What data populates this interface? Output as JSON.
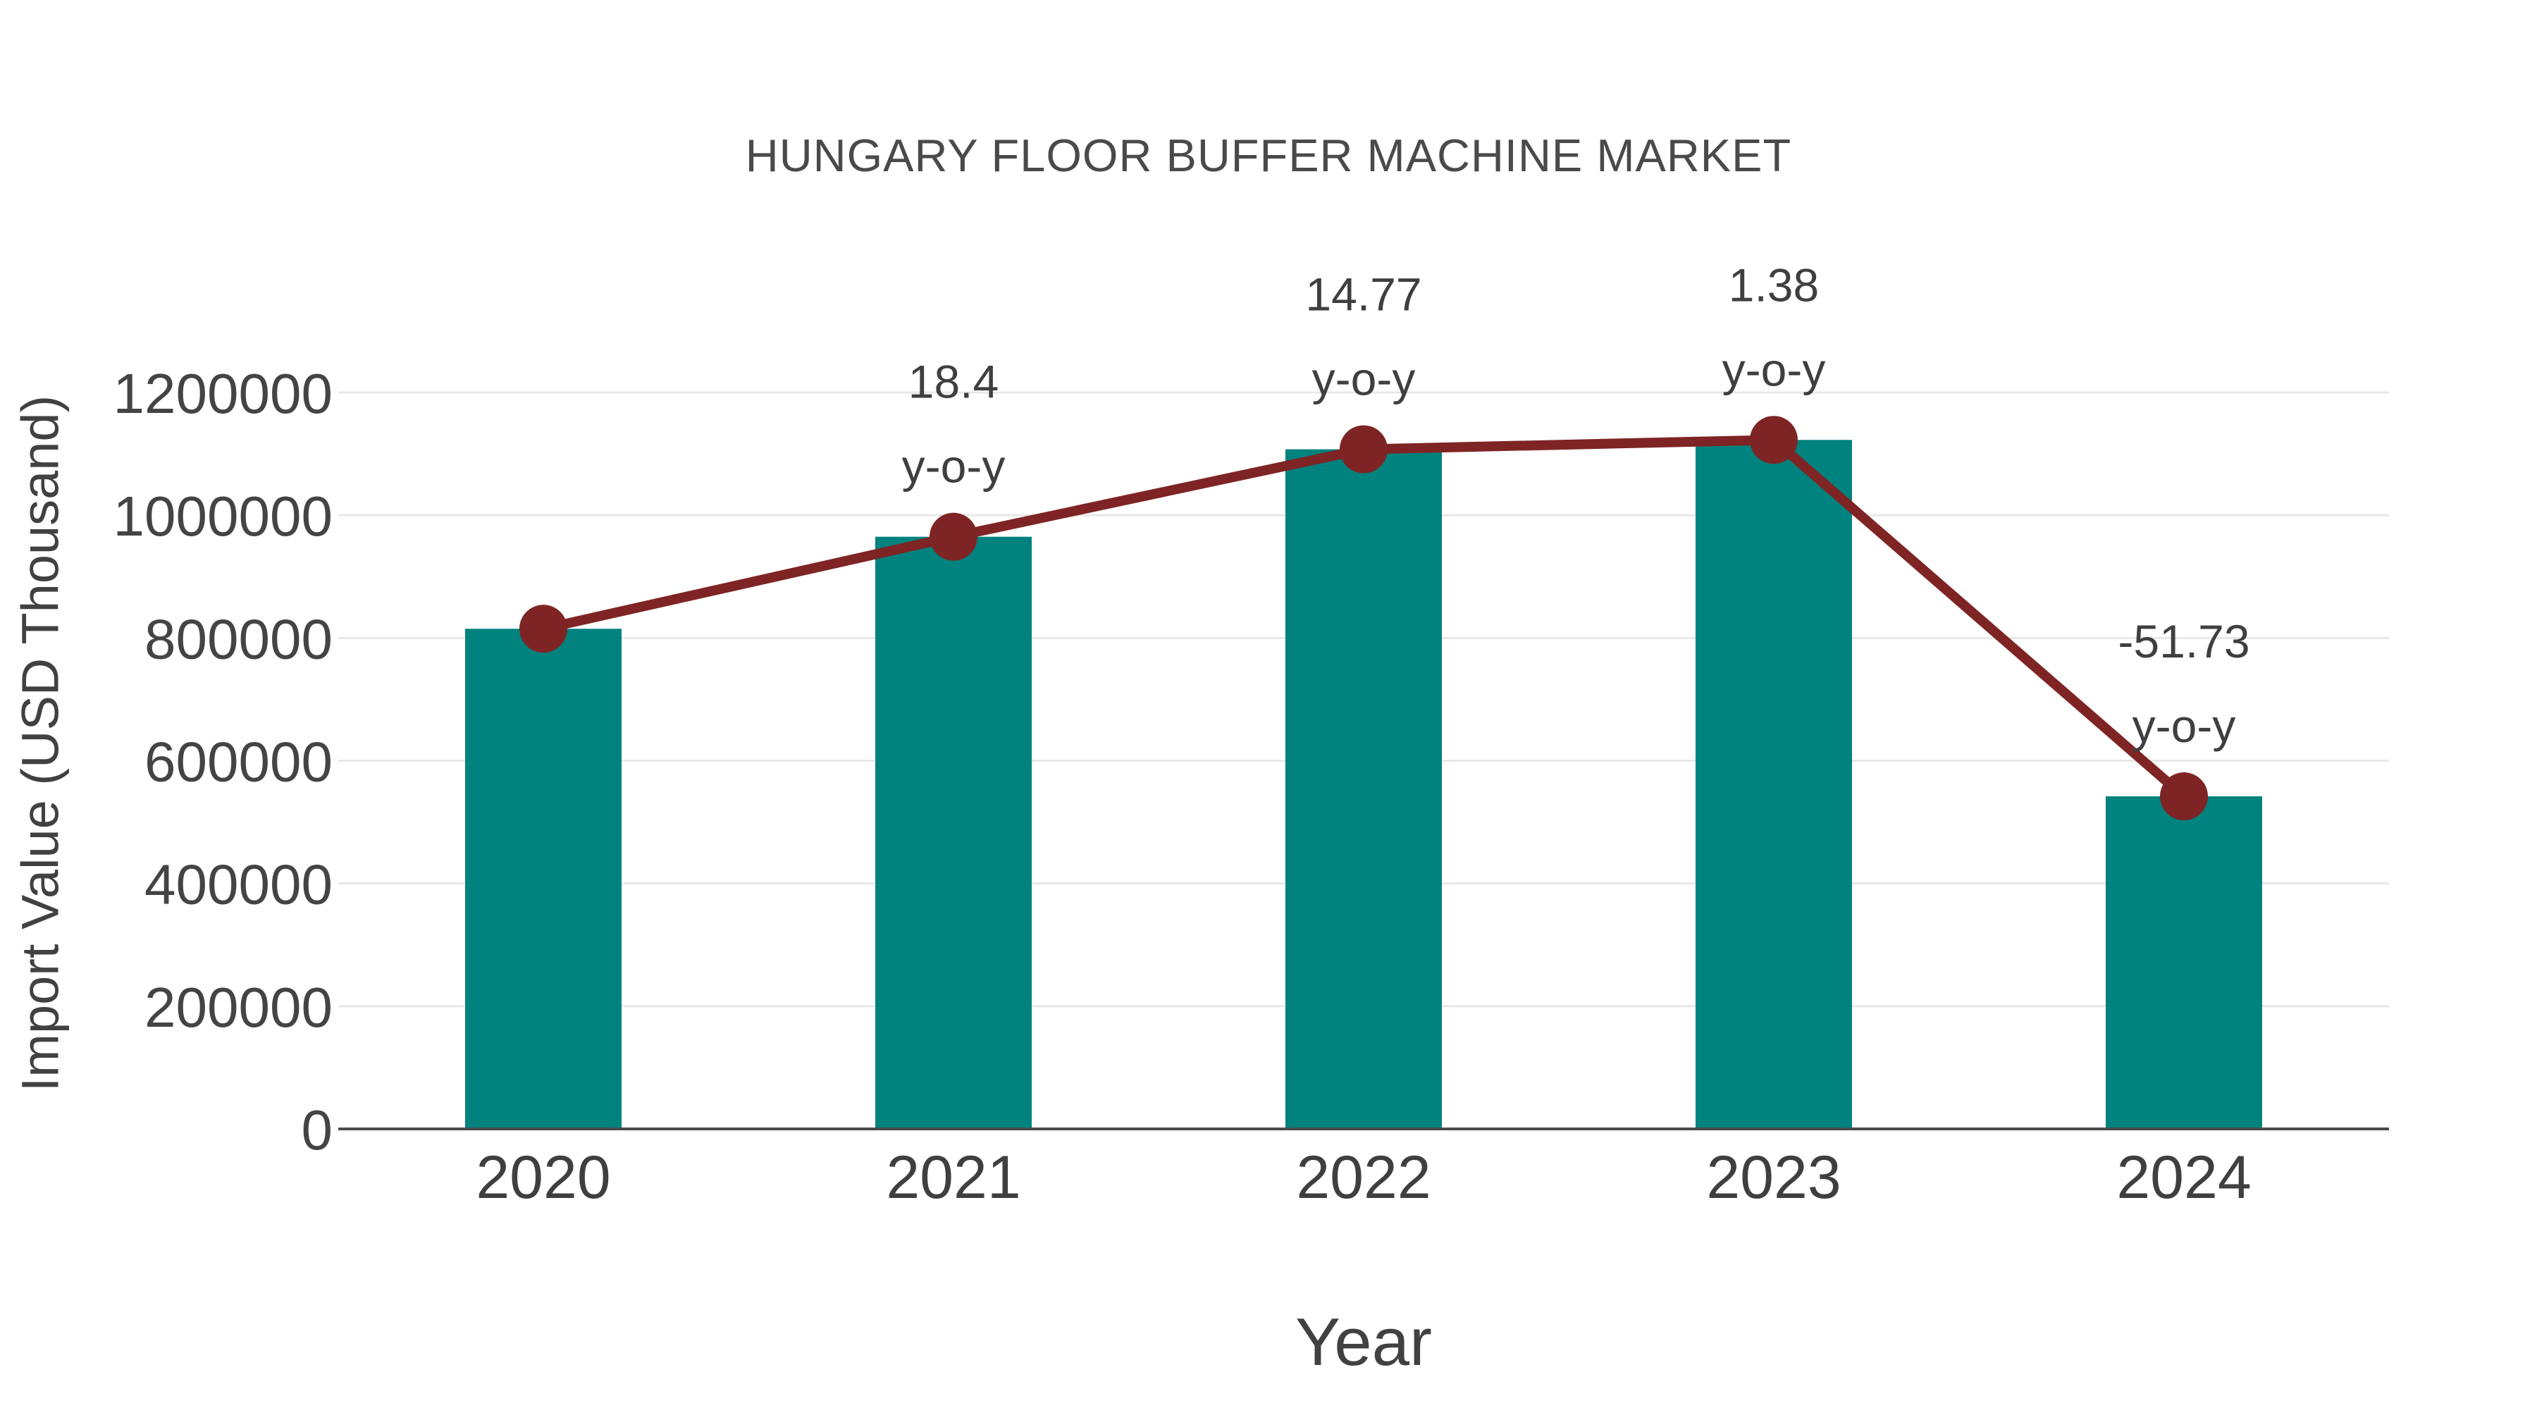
{
  "chart_data": {
    "type": "bar",
    "overlay": "line",
    "title": "HUNGARY FLOOR BUFFER MACHINE MARKET",
    "xlabel": "Year",
    "ylabel": "Import Value (USD Thousand)",
    "categories": [
      "2020",
      "2021",
      "2022",
      "2023",
      "2024"
    ],
    "values": [
      815000,
      964960,
      1107485,
      1122768,
      541960
    ],
    "line_values": [
      815000,
      964960,
      1107485,
      1122768,
      541960
    ],
    "yoy_values": [
      null,
      "18.4",
      "14.77",
      "1.38",
      "-51.73"
    ],
    "yoy_suffix": "y-o-y",
    "ylim": [
      0,
      1200000
    ],
    "yticks": [
      0,
      200000,
      400000,
      600000,
      800000,
      1000000,
      1200000
    ],
    "ytick_labels": [
      "0",
      "200000",
      "400000",
      "600000",
      "800000",
      "1000000",
      "1200000"
    ],
    "grid": "horizontal",
    "legend": "none",
    "colors": {
      "bar": "#00827E",
      "line": "#7F2424",
      "marker": "#7F2424",
      "gridline": "#E8E8E8",
      "axis_line": "#4A4A4A",
      "tick_text": "#444444",
      "title_text": "#4A4A4A"
    }
  }
}
